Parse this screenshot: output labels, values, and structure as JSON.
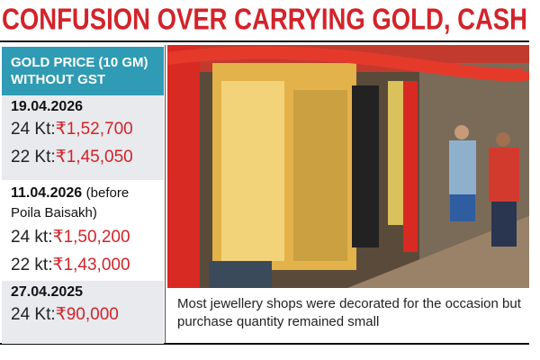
{
  "headline": "CONFUSION OVER CARRYING GOLD, CASH",
  "sidebar": {
    "title": "GOLD PRICE (10 GM) WITHOUT GST",
    "entries": [
      {
        "date": "19.04.2026",
        "prices": [
          {
            "label": "24 Kt:",
            "price": "₹1,52,700"
          },
          {
            "label": "22 Kt:",
            "price": "₹1,45,050"
          }
        ]
      },
      {
        "date": "11.04.2026",
        "note": "(before Poila Baisakh)",
        "prices": [
          {
            "label": "24 kt:",
            "price": "₹1,50,200"
          },
          {
            "label": "22 kt:",
            "price": "₹1,43,000"
          }
        ]
      },
      {
        "date": "27.04.2025",
        "prices": [
          {
            "label": "24 Kt:",
            "price": "₹90,000"
          }
        ]
      }
    ]
  },
  "photo": {
    "caption": "Most jewellery shops were decorated for the occasion but  purchase quantity remained small"
  }
}
